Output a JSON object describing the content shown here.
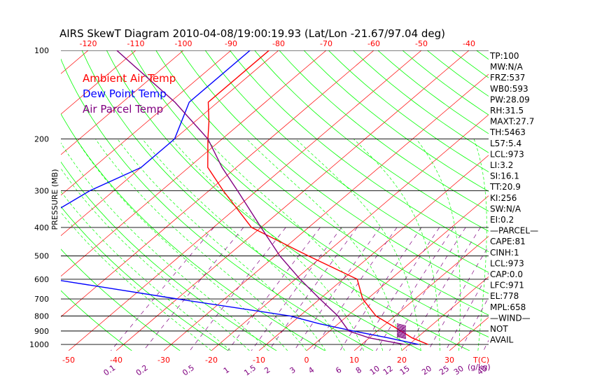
{
  "chart_data": {
    "type": "skewt",
    "title": "AIRS SkewT Diagram 2010-04-08/19:00:19.93 (Lat/Lon -21.67/97.04 deg)",
    "ylabel": "PRESSURE (MB)",
    "xlabel": "T(C)",
    "mixing_ratio_unit": "(g/kg)",
    "pressure_ticks": [
      100,
      200,
      300,
      400,
      500,
      600,
      700,
      800,
      900,
      1000
    ],
    "bottom_temp_ticks": [
      -50,
      -40,
      -30,
      -20,
      -10,
      0,
      10,
      20,
      30
    ],
    "top_temp_ticks": [
      -120,
      -110,
      -100,
      -90,
      -80,
      -70,
      -60,
      -50,
      -40
    ],
    "mixing_ratio_labels": [
      "0.1",
      "0.2",
      "0.5",
      "1",
      "1.5",
      "2",
      "3",
      "4",
      "6",
      "8",
      "10",
      "12",
      "15",
      "20",
      "25",
      "30",
      "40"
    ],
    "legend": [
      {
        "label": "Ambient Air Temp",
        "color": "#ff0000"
      },
      {
        "label": "Dew Point Temp",
        "color": "#0000ff"
      },
      {
        "label": "Air Parcel Temp",
        "color": "#800080"
      }
    ],
    "series": [
      {
        "name": "Ambient Air Temp",
        "color": "#ff0000",
        "points": [
          [
            100,
            -82
          ],
          [
            150,
            -82
          ],
          [
            175,
            -77
          ],
          [
            200,
            -73
          ],
          [
            250,
            -66
          ],
          [
            300,
            -57
          ],
          [
            400,
            -42
          ],
          [
            500,
            -23
          ],
          [
            600,
            -7
          ],
          [
            700,
            -1
          ],
          [
            800,
            6
          ],
          [
            900,
            15
          ],
          [
            950,
            19
          ],
          [
            1000,
            24
          ]
        ]
      },
      {
        "name": "Dew Point Temp",
        "color": "#0000ff",
        "points": [
          [
            100,
            -86
          ],
          [
            150,
            -86
          ],
          [
            200,
            -80
          ],
          [
            250,
            -80
          ],
          [
            300,
            -85
          ],
          [
            400,
            -89
          ],
          [
            500,
            -94
          ],
          [
            600,
            -71
          ],
          [
            700,
            -40
          ],
          [
            800,
            -12
          ],
          [
            850,
            -4
          ],
          [
            900,
            5
          ],
          [
            950,
            14
          ],
          [
            1000,
            22
          ]
        ]
      },
      {
        "name": "Air Parcel Temp",
        "color": "#800080",
        "points": [
          [
            100,
            -114
          ],
          [
            150,
            -89
          ],
          [
            200,
            -73
          ],
          [
            250,
            -63
          ],
          [
            300,
            -54
          ],
          [
            400,
            -40
          ],
          [
            500,
            -29
          ],
          [
            600,
            -19
          ],
          [
            700,
            -10
          ],
          [
            800,
            -2
          ],
          [
            900,
            4
          ],
          [
            950,
            10
          ],
          [
            1000,
            19
          ]
        ]
      }
    ],
    "indices": [
      "TP:100",
      "MW:N/A",
      "FRZ:537",
      "WB0:593",
      "PW:28.09",
      "RH:31.5",
      "MAXT:27.7",
      "TH:5463",
      "L57:5.4",
      "LCL:973",
      "LI:3.2",
      "SI:16.1",
      "TT:20.9",
      "KI:256",
      "SW:N/A",
      "EI:0.2",
      "—PARCEL—",
      "CAPE:81",
      "CINH:1",
      "LCL:973",
      "CAP:0.0",
      "LFC:971",
      "EL:778",
      "MPL:658",
      "—WIND—",
      "NOT",
      "AVAIL"
    ],
    "colors": {
      "isotherm": "#ff0000",
      "dry_adiabat": "#00ff00",
      "moist_adiabat": "#00ff00",
      "mixing_ratio": "#800080",
      "isobar": "#000000"
    },
    "grid": true
  }
}
